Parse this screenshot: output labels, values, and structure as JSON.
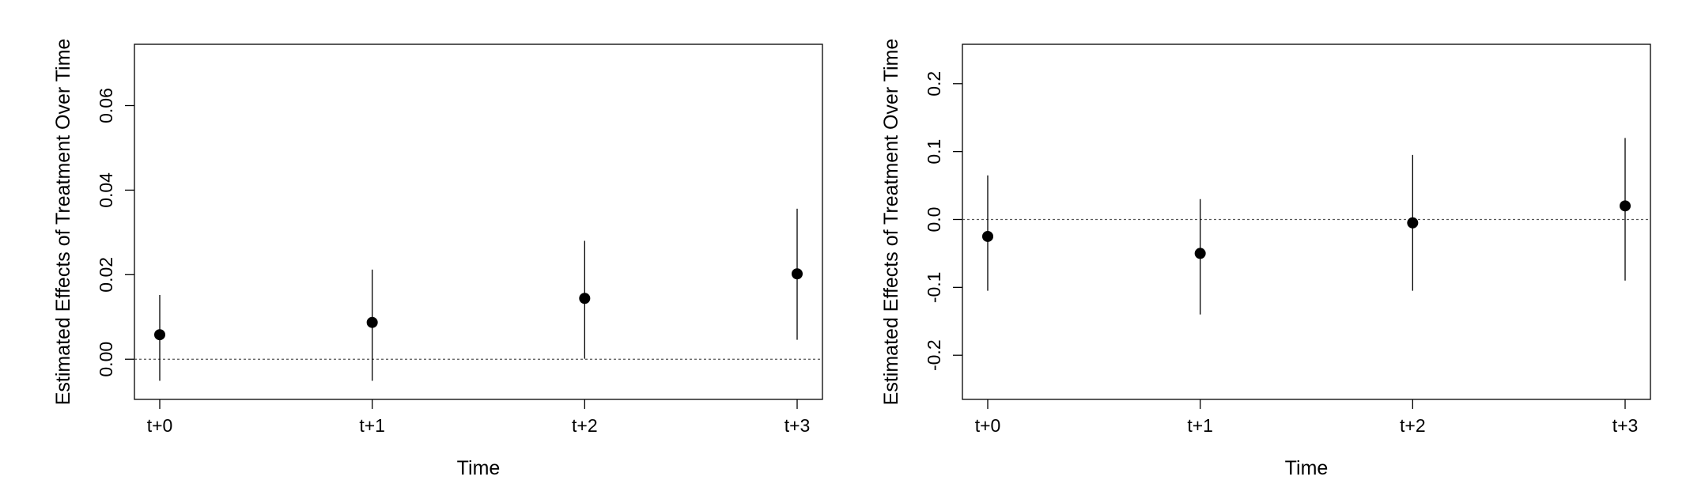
{
  "chart_data": [
    {
      "type": "scatter",
      "mark": "point-with-error-bars",
      "title": "",
      "xlabel": "Time",
      "ylabel": "Estimated Effects of Treatment Over Time",
      "categories": [
        "t+0",
        "t+1",
        "t+2",
        "t+3"
      ],
      "values": [
        0.0058,
        0.0087,
        0.0144,
        0.0202
      ],
      "lower": [
        -0.0051,
        -0.0051,
        0.0001,
        0.0046
      ],
      "upper": [
        0.0152,
        0.0212,
        0.028,
        0.0356
      ],
      "ylim": [
        -0.0095,
        0.0745
      ],
      "yticks": [
        0.0,
        0.02,
        0.04,
        0.06
      ],
      "ytick_labels": [
        "0.00",
        "0.02",
        "0.04",
        "0.06"
      ],
      "reference_line": 0,
      "reference_line_style": "dotted",
      "grid": false,
      "legend": "none",
      "point_color": "#000000"
    },
    {
      "type": "scatter",
      "mark": "point-with-error-bars",
      "title": "",
      "xlabel": "Time",
      "ylabel": "Estimated Effects of Treatment Over Time",
      "categories": [
        "t+0",
        "t+1",
        "t+2",
        "t+3"
      ],
      "values": [
        -0.025,
        -0.05,
        -0.005,
        0.02
      ],
      "lower": [
        -0.105,
        -0.14,
        -0.105,
        -0.09
      ],
      "upper": [
        0.065,
        0.03,
        0.095,
        0.12
      ],
      "ylim": [
        -0.265,
        0.258
      ],
      "yticks": [
        -0.2,
        -0.1,
        0.0,
        0.1,
        0.2
      ],
      "ytick_labels": [
        "-0.2",
        "-0.1",
        "0.0",
        "0.1",
        "0.2"
      ],
      "reference_line": 0,
      "reference_line_style": "dotted",
      "grid": false,
      "legend": "none",
      "point_color": "#000000"
    }
  ]
}
